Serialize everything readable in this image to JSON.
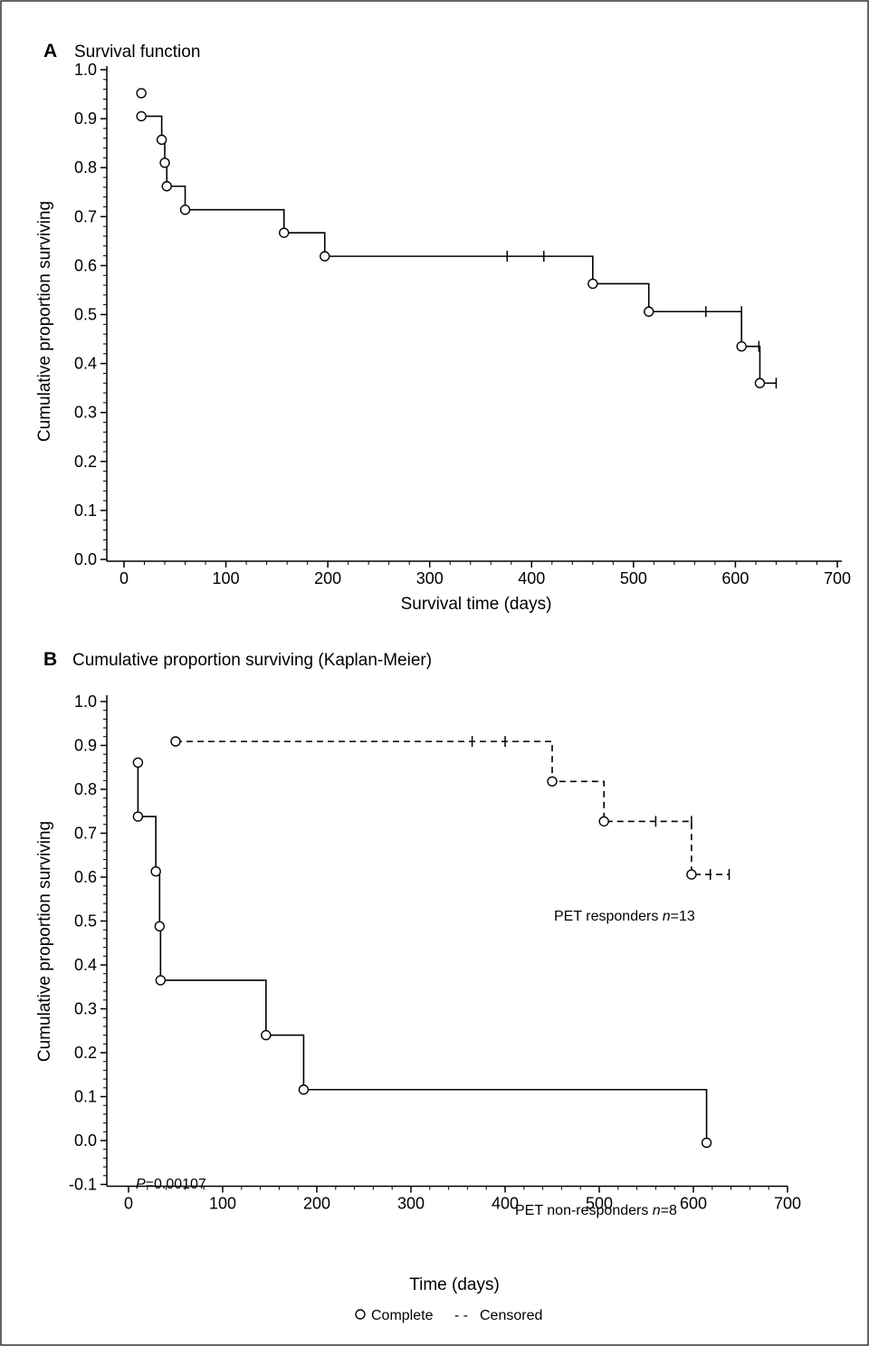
{
  "legend": {
    "complete": "Complete",
    "censored": "Censored",
    "complete_symbol": "O",
    "censored_symbol": "- -"
  },
  "chart_data": [
    {
      "type": "line",
      "panel": "A",
      "title": "Survival function",
      "xlabel": "Survival time (days)",
      "ylabel": "Cumulative proportion surviving",
      "xlim": [
        0,
        700
      ],
      "ylim": [
        0.0,
        1.0
      ],
      "xticks": [
        0,
        100,
        200,
        300,
        400,
        500,
        600,
        700
      ],
      "xtick_labels": [
        "0",
        "100",
        "200",
        "300",
        "400",
        "500",
        "600",
        "700"
      ],
      "yticks": [
        0.0,
        0.1,
        0.2,
        0.3,
        0.4,
        0.5,
        0.6,
        0.7,
        0.8,
        0.9,
        1.0
      ],
      "ytick_labels": [
        "0.0",
        "0.1",
        "0.2",
        "0.3",
        "0.4",
        "0.5",
        "0.6",
        "0.7",
        "0.8",
        "0.9",
        "1.0"
      ],
      "grid": false,
      "series": [
        {
          "style": "solid",
          "steps": [
            [
              17,
              0.905
            ],
            [
              37,
              0.857
            ],
            [
              40,
              0.81
            ],
            [
              42,
              0.762
            ],
            [
              60,
              0.714
            ],
            [
              157,
              0.667
            ],
            [
              197,
              0.619
            ],
            [
              460,
              0.563
            ],
            [
              515,
              0.506
            ],
            [
              606,
              0.435
            ],
            [
              624,
              0.36
            ]
          ],
          "end_x": 640,
          "complete": [
            [
              17,
              0.952
            ],
            [
              17,
              0.905
            ],
            [
              37,
              0.857
            ],
            [
              40,
              0.81
            ],
            [
              42,
              0.762
            ],
            [
              60,
              0.714
            ],
            [
              157,
              0.667
            ],
            [
              197,
              0.619
            ],
            [
              460,
              0.563
            ],
            [
              515,
              0.506
            ],
            [
              606,
              0.435
            ],
            [
              624,
              0.36
            ]
          ],
          "censored": [
            [
              376,
              0.619
            ],
            [
              412,
              0.619
            ],
            [
              571,
              0.506
            ],
            [
              606,
              0.506
            ],
            [
              623,
              0.435
            ],
            [
              640,
              0.36
            ]
          ]
        }
      ]
    },
    {
      "type": "line",
      "panel": "B",
      "title": "Cumulative proportion surviving (Kaplan-Meier)",
      "xlabel": "Time (days)",
      "ylabel": "Cumulative proportion surviving",
      "xlim": [
        0,
        700
      ],
      "ylim": [
        -0.1,
        1.0
      ],
      "xticks": [
        0,
        100,
        200,
        300,
        400,
        500,
        600,
        700
      ],
      "xtick_labels": [
        "0",
        "100",
        "200",
        "300",
        "400",
        "500",
        "600",
        "700"
      ],
      "yticks": [
        -0.1,
        0.0,
        0.1,
        0.2,
        0.3,
        0.4,
        0.5,
        0.6,
        0.7,
        0.8,
        0.9,
        1.0
      ],
      "ytick_labels": [
        "-0.1",
        "0.0",
        "0.1",
        "0.2",
        "0.3",
        "0.4",
        "0.5",
        "0.6",
        "0.7",
        "0.8",
        "0.9",
        "1.0"
      ],
      "grid": false,
      "annotation_p_label": "P",
      "annotation_p_value": "=0.00107",
      "series": [
        {
          "label_text": "PET responders ",
          "label_n": "n",
          "label_count": "=13",
          "style": "dashed",
          "steps": [
            [
              50,
              0.909
            ],
            [
              450,
              0.818
            ],
            [
              505,
              0.727
            ],
            [
              598,
              0.606
            ]
          ],
          "end_x": 638,
          "complete": [
            [
              50,
              0.909
            ],
            [
              450,
              0.818
            ],
            [
              505,
              0.727
            ],
            [
              598,
              0.606
            ]
          ],
          "censored": [
            [
              365,
              0.909
            ],
            [
              400,
              0.909
            ],
            [
              560,
              0.727
            ],
            [
              598,
              0.727
            ],
            [
              618,
              0.606
            ],
            [
              638,
              0.606
            ]
          ]
        },
        {
          "label_text": "PET non-responders ",
          "label_n": "n",
          "label_count": "=8",
          "style": "solid",
          "steps": [
            [
              10,
              0.861
            ],
            [
              10,
              0.738
            ],
            [
              29,
              0.613
            ],
            [
              33,
              0.488
            ],
            [
              34,
              0.365
            ],
            [
              146,
              0.24
            ],
            [
              186,
              0.116
            ],
            [
              614,
              -0.005
            ]
          ],
          "end_x": 614,
          "complete": [
            [
              10,
              0.861
            ],
            [
              10,
              0.738
            ],
            [
              29,
              0.613
            ],
            [
              33,
              0.488
            ],
            [
              34,
              0.365
            ],
            [
              146,
              0.24
            ],
            [
              186,
              0.116
            ],
            [
              614,
              -0.005
            ]
          ],
          "censored": []
        }
      ]
    }
  ]
}
